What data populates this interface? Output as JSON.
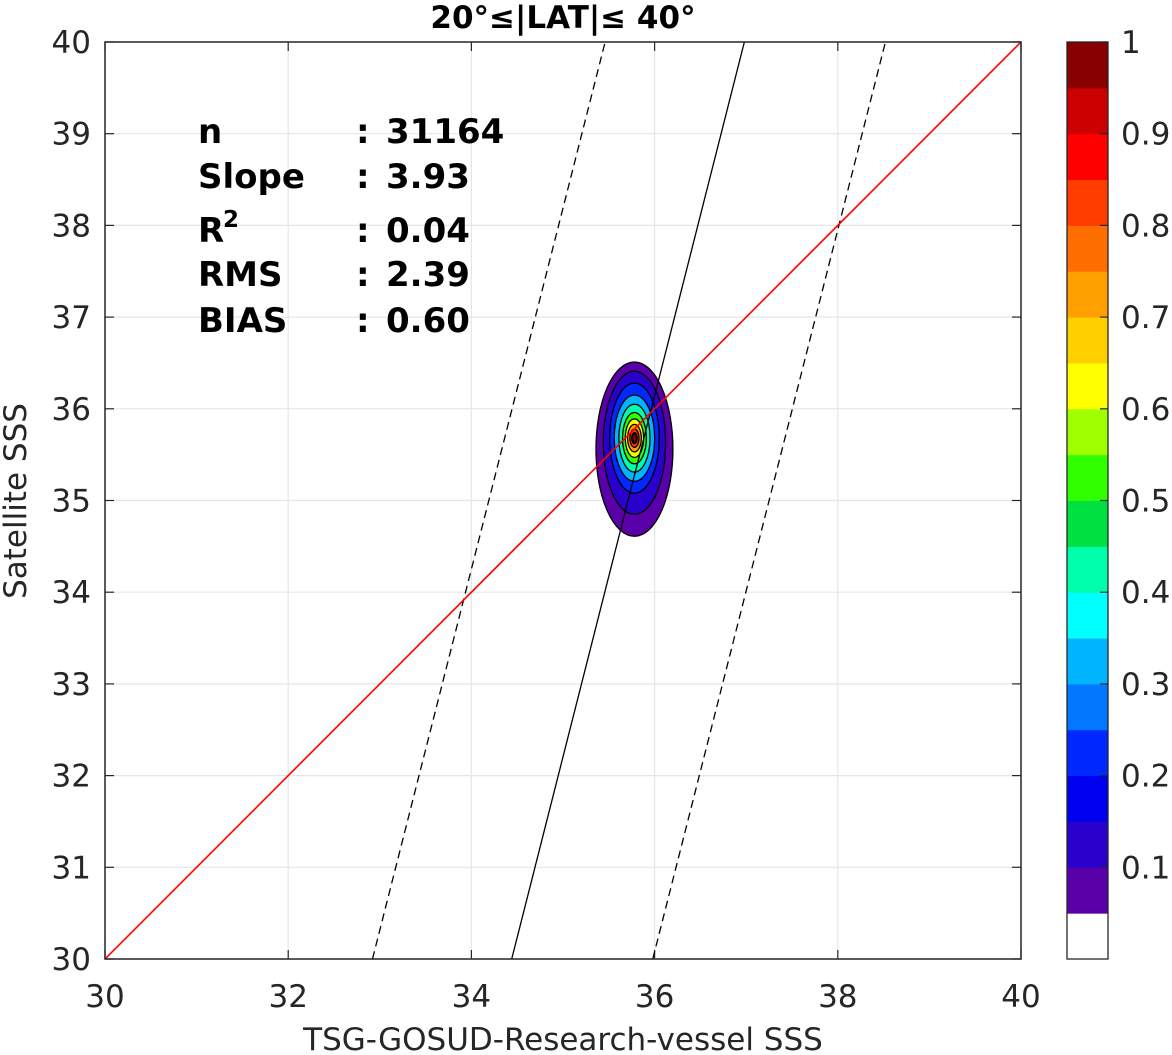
{
  "chart_data": {
    "type": "contour",
    "title": "20°≤|LAT|≤ 40°",
    "xlabel": "TSG-GOSUD-Research-vessel SSS",
    "ylabel": "Satellite SSS",
    "xlim": [
      30,
      40
    ],
    "ylim": [
      30,
      40
    ],
    "xticks": [
      "30",
      "32",
      "34",
      "36",
      "38",
      "40"
    ],
    "yticks": [
      "30",
      "31",
      "32",
      "33",
      "34",
      "35",
      "36",
      "37",
      "38",
      "39",
      "40"
    ],
    "grid": true,
    "stats": [
      {
        "label": "n",
        "sep": ": ",
        "value": "31164"
      },
      {
        "label": "Slope",
        "sep": ": ",
        "value": "3.93"
      },
      {
        "label": "R",
        "sup": "2",
        "sep": ": ",
        "value": "0.04"
      },
      {
        "label": "RMS",
        "sep": ": ",
        "value": "2.39"
      },
      {
        "label": "BIAS",
        "sep": ": ",
        "value": "0.60"
      }
    ],
    "lines": {
      "identity": {
        "color": "#ff0000",
        "style": "solid",
        "points": [
          [
            30,
            30
          ],
          [
            40,
            40
          ]
        ]
      },
      "fit": {
        "color": "#000000",
        "style": "solid",
        "points": [
          [
            34.44,
            30
          ],
          [
            36.98,
            40
          ]
        ]
      },
      "fit_lower": {
        "color": "#000000",
        "style": "dashed",
        "points": [
          [
            35.98,
            30
          ],
          [
            38.52,
            40
          ]
        ]
      },
      "fit_upper": {
        "color": "#000000",
        "style": "dashed",
        "points": [
          [
            32.92,
            30
          ],
          [
            35.46,
            40
          ]
        ]
      }
    },
    "density_center": {
      "x": 35.78,
      "y": 35.68
    },
    "density_contours": [
      {
        "level": 0.05,
        "rx": 0.42,
        "ry": 0.95,
        "dy": -0.12
      },
      {
        "level": 0.1,
        "rx": 0.34,
        "ry": 0.78,
        "dy": -0.05
      },
      {
        "level": 0.2,
        "rx": 0.27,
        "ry": 0.6,
        "dy": 0
      },
      {
        "level": 0.3,
        "rx": 0.22,
        "ry": 0.47,
        "dy": 0
      },
      {
        "level": 0.4,
        "rx": 0.17,
        "ry": 0.37,
        "dy": 0
      },
      {
        "level": 0.5,
        "rx": 0.13,
        "ry": 0.28,
        "dy": 0
      },
      {
        "level": 0.6,
        "rx": 0.1,
        "ry": 0.21,
        "dy": 0
      },
      {
        "level": 0.7,
        "rx": 0.075,
        "ry": 0.15,
        "dy": 0
      },
      {
        "level": 0.8,
        "rx": 0.05,
        "ry": 0.1,
        "dy": 0
      },
      {
        "level": 0.9,
        "rx": 0.03,
        "ry": 0.06,
        "dy": 0
      }
    ],
    "colorbar": {
      "ticks": [
        "0.1",
        "0.2",
        "0.3",
        "0.4",
        "0.5",
        "0.6",
        "0.7",
        "0.8",
        "0.9",
        "1"
      ],
      "colors": [
        "#ffffff",
        "#5a00a8",
        "#2a00cc",
        "#0000f0",
        "#0028ff",
        "#0078ff",
        "#00b4ff",
        "#00ffff",
        "#00ffaa",
        "#00e040",
        "#30ff00",
        "#a0ff00",
        "#ffff00",
        "#ffd000",
        "#ff9f00",
        "#ff6e00",
        "#ff3c00",
        "#ff0000",
        "#cc0000",
        "#880000"
      ]
    }
  }
}
